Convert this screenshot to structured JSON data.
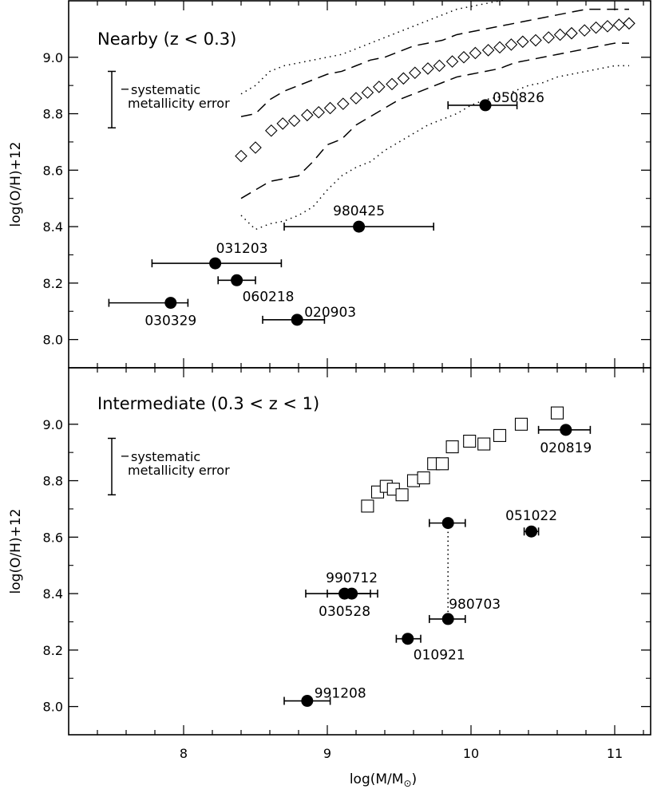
{
  "figure": {
    "xlabel": "log(M/M",
    "xlabel_sub": "⊙",
    "xlabel_close": ")",
    "x_ticks": [
      "8",
      "9",
      "10",
      "11"
    ]
  },
  "chart_data": [
    {
      "type": "scatter",
      "panel": "top",
      "title": "Nearby (z < 0.3)",
      "xlabel": "log(M/M⊙)",
      "ylabel": "log(O/H)+12",
      "xlim": [
        7.2,
        11.25
      ],
      "ylim": [
        7.9,
        9.2
      ],
      "y_ticks": [
        "8.0",
        "8.2",
        "8.4",
        "8.6",
        "8.8",
        "9.0"
      ],
      "systematic_error_label": [
        "systematic",
        "metallicity error"
      ],
      "systematic_error": {
        "x": 7.5,
        "y_low": 8.75,
        "y_high": 8.95
      },
      "grb_hosts": [
        {
          "label": "050826",
          "x": 10.1,
          "y": 8.83,
          "xerr": [
            9.84,
            10.32
          ],
          "label_pos": "right"
        },
        {
          "label": "980425",
          "x": 9.22,
          "y": 8.4,
          "xerr": [
            8.7,
            9.74
          ],
          "label_pos": "above"
        },
        {
          "label": "031203",
          "x": 8.22,
          "y": 8.27,
          "xerr": [
            7.78,
            8.68
          ],
          "label_pos": "above-right"
        },
        {
          "label": "060218",
          "x": 8.37,
          "y": 8.21,
          "xerr": [
            8.24,
            8.5
          ],
          "label_pos": "below-right"
        },
        {
          "label": "030329",
          "x": 7.91,
          "y": 8.13,
          "xerr": [
            7.48,
            8.03
          ],
          "label_pos": "below"
        },
        {
          "label": "020903",
          "x": 8.79,
          "y": 8.07,
          "xerr": [
            8.55,
            8.98
          ],
          "label_pos": "right"
        }
      ],
      "sdss_median": {
        "x": [
          8.4,
          8.5,
          8.61,
          8.69,
          8.77,
          8.86,
          8.94,
          9.02,
          9.11,
          9.2,
          9.28,
          9.36,
          9.45,
          9.53,
          9.61,
          9.7,
          9.78,
          9.87,
          9.95,
          10.03,
          10.12,
          10.2,
          10.28,
          10.36,
          10.45,
          10.54,
          10.62,
          10.7,
          10.79,
          10.87,
          10.95,
          11.03,
          11.1
        ],
        "y": [
          8.65,
          8.68,
          8.74,
          8.765,
          8.775,
          8.795,
          8.805,
          8.82,
          8.835,
          8.855,
          8.875,
          8.895,
          8.905,
          8.925,
          8.945,
          8.96,
          8.97,
          8.985,
          9.0,
          9.015,
          9.025,
          9.035,
          9.045,
          9.055,
          9.06,
          9.07,
          9.08,
          9.085,
          9.095,
          9.105,
          9.11,
          9.115,
          9.12
        ]
      },
      "sdss_inner_upper": {
        "x": [
          8.4,
          8.5,
          8.6,
          8.7,
          8.8,
          8.9,
          9.0,
          9.1,
          9.2,
          9.3,
          9.4,
          9.5,
          9.6,
          9.7,
          9.8,
          9.9,
          10.0,
          10.1,
          10.2,
          10.3,
          10.4,
          10.5,
          10.6,
          10.7,
          10.8,
          10.9,
          11.0,
          11.1
        ],
        "y": [
          8.79,
          8.8,
          8.85,
          8.88,
          8.9,
          8.92,
          8.94,
          8.95,
          8.97,
          8.99,
          9.0,
          9.02,
          9.04,
          9.05,
          9.06,
          9.08,
          9.09,
          9.1,
          9.11,
          9.12,
          9.13,
          9.14,
          9.15,
          9.16,
          9.17,
          9.17,
          9.17,
          9.17
        ]
      },
      "sdss_inner_lower": {
        "x": [
          8.4,
          8.5,
          8.6,
          8.7,
          8.8,
          8.9,
          9.0,
          9.1,
          9.2,
          9.3,
          9.4,
          9.5,
          9.6,
          9.7,
          9.8,
          9.9,
          10.0,
          10.1,
          10.2,
          10.3,
          10.4,
          10.5,
          10.6,
          10.7,
          10.8,
          10.9,
          11.0,
          11.1
        ],
        "y": [
          8.5,
          8.53,
          8.56,
          8.57,
          8.58,
          8.63,
          8.69,
          8.71,
          8.76,
          8.79,
          8.82,
          8.85,
          8.87,
          8.89,
          8.91,
          8.93,
          8.94,
          8.95,
          8.96,
          8.98,
          8.99,
          9.0,
          9.01,
          9.02,
          9.03,
          9.04,
          9.05,
          9.05
        ]
      },
      "sdss_outer_upper": {
        "x": [
          8.4,
          8.5,
          8.6,
          8.7,
          8.8,
          8.9,
          9.0,
          9.1,
          9.2,
          9.3,
          9.4,
          9.5,
          9.6,
          9.7,
          9.8,
          9.9,
          10.0,
          10.1,
          10.2,
          10.3,
          10.4,
          10.5,
          10.6,
          10.7,
          10.8,
          10.9,
          11.0,
          11.1
        ],
        "y": [
          8.87,
          8.9,
          8.95,
          8.97,
          8.98,
          8.99,
          9.0,
          9.01,
          9.03,
          9.05,
          9.07,
          9.09,
          9.11,
          9.13,
          9.15,
          9.17,
          9.18,
          9.19,
          9.2,
          9.21,
          9.22,
          9.22,
          9.23,
          9.23,
          9.23,
          9.23,
          9.23,
          9.23
        ]
      },
      "sdss_outer_lower": {
        "x": [
          8.4,
          8.5,
          8.6,
          8.7,
          8.8,
          8.9,
          9.0,
          9.1,
          9.2,
          9.3,
          9.4,
          9.5,
          9.6,
          9.7,
          9.8,
          9.9,
          10.0,
          10.1,
          10.2,
          10.3,
          10.4,
          10.5,
          10.6,
          10.7,
          10.8,
          10.9,
          11.0,
          11.1
        ],
        "y": [
          8.44,
          8.39,
          8.41,
          8.42,
          8.44,
          8.47,
          8.53,
          8.58,
          8.61,
          8.63,
          8.67,
          8.7,
          8.73,
          8.76,
          8.78,
          8.8,
          8.83,
          8.85,
          8.86,
          8.88,
          8.9,
          8.91,
          8.93,
          8.94,
          8.95,
          8.96,
          8.97,
          8.97
        ]
      }
    },
    {
      "type": "scatter",
      "panel": "bottom",
      "title": "Intermediate (0.3 < z < 1)",
      "xlabel": "log(M/M⊙)",
      "ylabel": "log(O/H)+12",
      "xlim": [
        7.2,
        11.25
      ],
      "ylim": [
        7.9,
        9.2
      ],
      "y_ticks": [
        "8.0",
        "8.2",
        "8.4",
        "8.6",
        "8.8",
        "9.0"
      ],
      "systematic_error_label": [
        "systematic",
        "metallicity error"
      ],
      "systematic_error": {
        "x": 7.5,
        "y_low": 8.75,
        "y_high": 8.95
      },
      "grb_hosts": [
        {
          "label": "020819",
          "x": 10.66,
          "y": 8.98,
          "xerr": [
            10.47,
            10.83
          ],
          "label_pos": "below"
        },
        {
          "label": "051022",
          "x": 10.42,
          "y": 8.62,
          "xerr": [
            10.37,
            10.47
          ],
          "label_pos": "above"
        },
        {
          "label": "990712",
          "x": 9.17,
          "y": 8.4,
          "xerr": [
            9.0,
            9.35
          ],
          "label_pos": "above"
        },
        {
          "label": "030528",
          "x": 9.12,
          "y": 8.4,
          "xerr": [
            8.85,
            9.3
          ],
          "label_pos": "below"
        },
        {
          "label": "980703",
          "x": 9.84,
          "y": 8.31,
          "xerr": [
            9.71,
            9.96
          ],
          "label_pos": "above-right"
        },
        {
          "label": "010921",
          "x": 9.56,
          "y": 8.24,
          "xerr": [
            9.48,
            9.65
          ],
          "label_pos": "below-right"
        },
        {
          "label": "991208",
          "x": 8.86,
          "y": 8.02,
          "xerr": [
            8.7,
            9.02
          ],
          "label_pos": "right"
        }
      ],
      "unlabeled_points": [
        {
          "x": 9.84,
          "y": 8.65,
          "xerr": [
            9.71,
            9.96
          ]
        }
      ],
      "connector": {
        "x": 9.84,
        "y_from": 8.65,
        "y_to": 8.31,
        "style": "dotted"
      },
      "comparison_sample": {
        "marker": "open square",
        "x": [
          9.28,
          9.35,
          9.41,
          9.46,
          9.52,
          9.6,
          9.67,
          9.74,
          9.8,
          9.87,
          9.99,
          10.09,
          10.2,
          10.35,
          10.6
        ],
        "y": [
          8.71,
          8.76,
          8.78,
          8.77,
          8.75,
          8.8,
          8.81,
          8.86,
          8.86,
          8.92,
          8.94,
          8.93,
          8.96,
          9.0,
          9.04
        ]
      }
    }
  ]
}
